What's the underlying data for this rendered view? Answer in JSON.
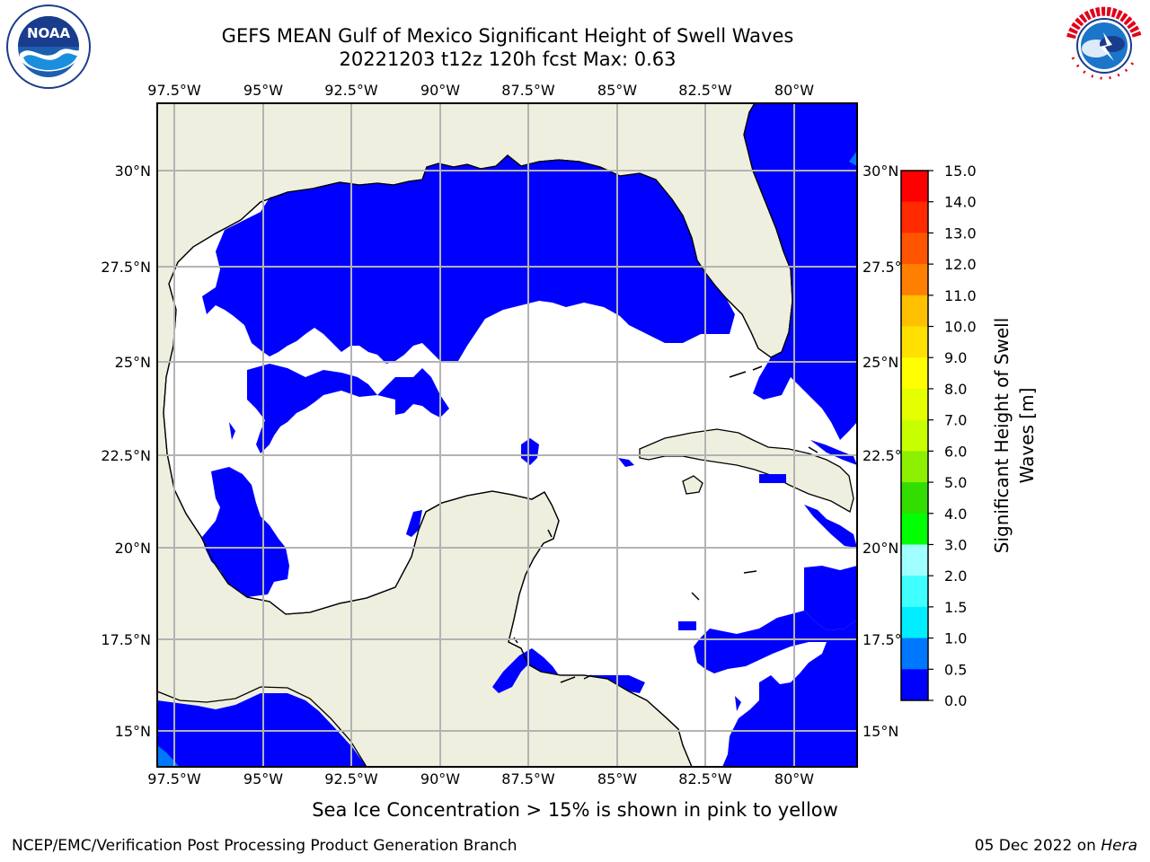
{
  "title": {
    "line1": "GEFS MEAN Gulf of Mexico Significant Height of Swell Waves",
    "line2": "20221203 t12z 120h fcst   Max: 0.63"
  },
  "logos": {
    "left": {
      "name": "noaa-logo",
      "text": "NOAA",
      "ring_text": "NATIONAL OCEANIC AND ATMOSPHERIC ADMINISTRATION · U.S. DEPARTMENT OF COMMERCE"
    },
    "right": {
      "name": "nws-logo",
      "ring_text": "NATIONAL WEATHER SERVICE"
    }
  },
  "map": {
    "lon_ticks": [
      "97.5°W",
      "95°W",
      "92.5°W",
      "90°W",
      "87.5°W",
      "85°W",
      "82.5°W",
      "80°W"
    ],
    "lat_ticks_left": [
      "30°N",
      "27.5°N",
      "25°N",
      "22.5°N",
      "20°N",
      "17.5°N",
      "15°N"
    ],
    "lat_ticks_right": [
      "30°N",
      "27.5°N",
      "25°N",
      "22.5°N",
      "20°N",
      "17.5°N",
      "15°N"
    ],
    "colors": {
      "land": "#efefdf",
      "swell_0_0.5": "#0000ff",
      "swell_0.5_1": "#0077ff",
      "grid": "#b3b3b3",
      "coast": "#000000"
    }
  },
  "colorbar": {
    "label_line1": "Significant Height of Swell",
    "label_line2": "Waves [m]",
    "ticks": [
      "15.0",
      "14.0",
      "13.0",
      "12.0",
      "11.0",
      "10.0",
      "9.0",
      "8.0",
      "7.0",
      "6.0",
      "5.0",
      "4.0",
      "3.0",
      "2.0",
      "1.5",
      "1.0",
      "0.5",
      "0.0"
    ],
    "colors": [
      "#ff0000",
      "#ff2a00",
      "#ff5500",
      "#ff7f00",
      "#ffa000",
      "#ffc000",
      "#ffe000",
      "#ffff00",
      "#e6ff00",
      "#c8ff00",
      "#8cf000",
      "#33dd00",
      "#00ff00",
      "#4fff7f",
      "#a0ffff",
      "#3fffff",
      "#00eeff",
      "#0077ff",
      "#0000ff"
    ]
  },
  "caption": "Sea Ice Concentration > 15% is shown in pink to yellow",
  "footer": {
    "left": "NCEP/EMC/Verification Post Processing Product Generation Branch",
    "right_prefix": "05 Dec 2022 on ",
    "right_host": "Hera"
  }
}
